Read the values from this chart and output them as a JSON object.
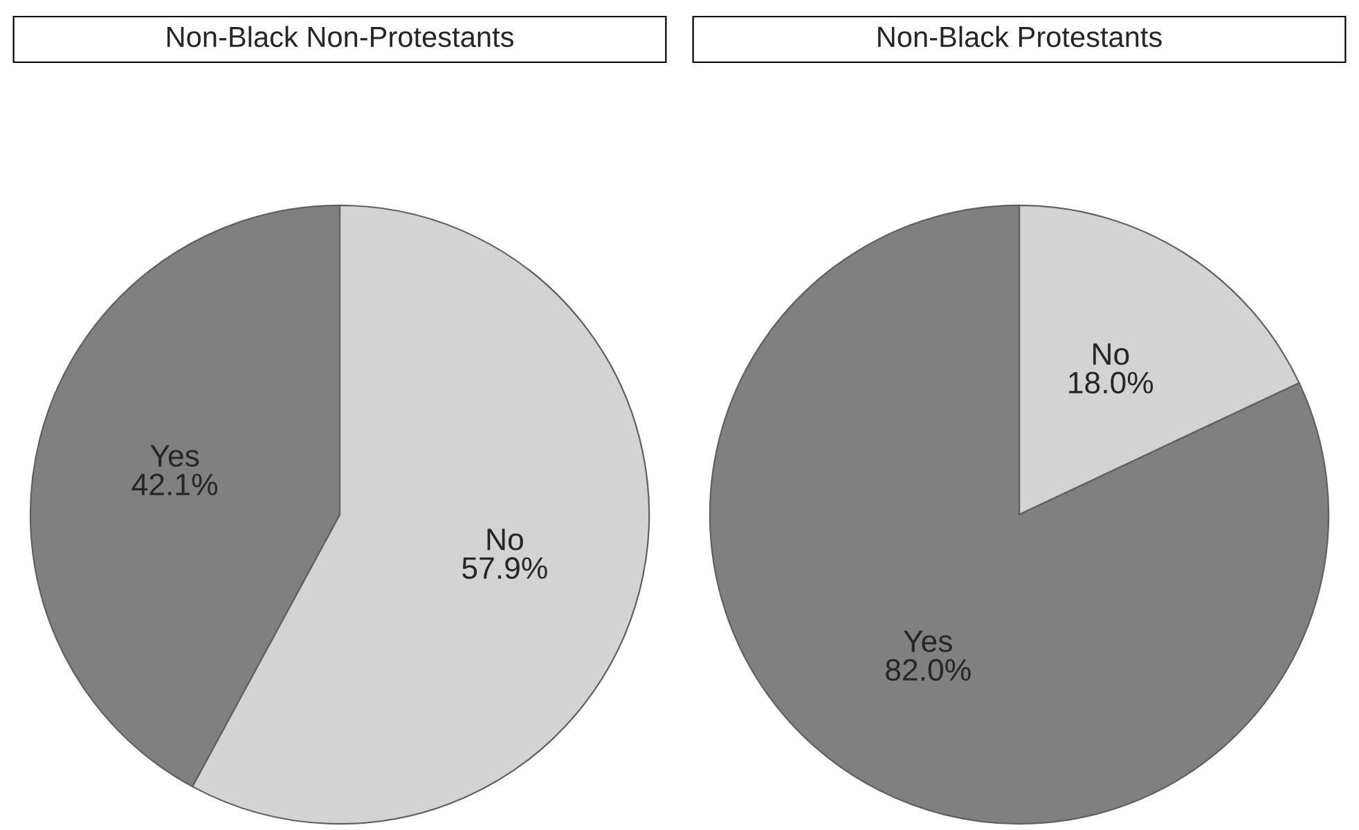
{
  "chart_data": [
    {
      "type": "pie",
      "title": "Non-Black Non-Protestants",
      "categories": [
        "No",
        "Yes"
      ],
      "values": [
        57.9,
        42.1
      ],
      "value_labels": [
        "57.9%",
        "42.1%"
      ],
      "colors": [
        "#d3d3d3",
        "#808080"
      ]
    },
    {
      "type": "pie",
      "title": "Non-Black Protestants",
      "categories": [
        "No",
        "Yes"
      ],
      "values": [
        18.0,
        82.0
      ],
      "value_labels": [
        "18.0%",
        "82.0%"
      ],
      "colors": [
        "#d3d3d3",
        "#808080"
      ]
    }
  ]
}
